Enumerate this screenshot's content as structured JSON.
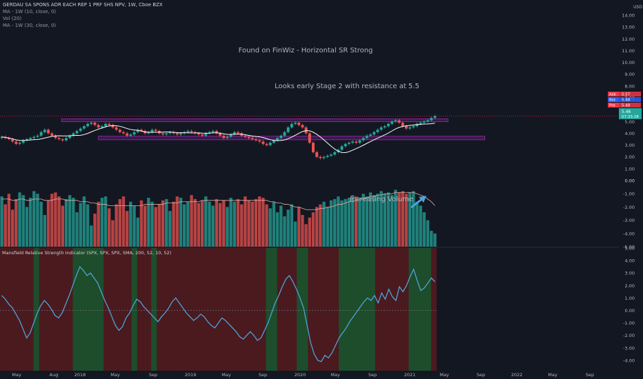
{
  "header": {
    "title": "GERDAU SA SPONS ADR EACH REP 1 PRF SHS NPV, 1W, Cboe BZX",
    "indicators": [
      "MA - 1W (10, close, 0)",
      "Vol (20)",
      "MA - 1W (30, close, 0)"
    ],
    "currency": "USD"
  },
  "annotations": {
    "finwiz": "Found on FinWiz - Horizontal SR Strong",
    "stage": "Looks early Stage 2 with resistance at 5.5",
    "volume": "Increasing Volume"
  },
  "quote_tags": [
    {
      "label": "Ask",
      "value": "5.57",
      "color": "#f23645"
    },
    {
      "label": "Bid",
      "value": "5.48",
      "color": "#2962ff"
    },
    {
      "label": "Pre",
      "value": "5.48",
      "color": "#f23645"
    }
  ],
  "last_price": {
    "value": "5.46",
    "countdown": "07:33:28",
    "color": "#26a69a"
  },
  "colors": {
    "up": "#26a69a",
    "down": "#ef5350",
    "zone": "#9c27b0",
    "rs_line": "#4fa3d9",
    "ma_line": "#ffffff",
    "green_bg": "#1e4d2b",
    "red_bg": "#4a1a1f"
  },
  "chart_data": [
    {
      "type": "candlestick",
      "title": "GERDAU SA SPONS ADR EACH REP 1 PRF SHS NPV, 1W, Cboe BZX",
      "y_ticks": [
        "14.00",
        "13.00",
        "12.00",
        "11.00",
        "10.00",
        "9.00",
        "8.00",
        "7.00",
        "6.00",
        "5.00",
        "4.00",
        "3.00",
        "2.00",
        "1.00",
        "0.00"
      ],
      "ylim": [
        0,
        14
      ],
      "x_ticks": [
        "May",
        "Aug",
        "2018",
        "May",
        "Sep",
        "2019",
        "May",
        "Sep",
        "2020",
        "May",
        "Sep",
        "2021",
        "May",
        "Sep",
        "2022",
        "May",
        "Sep"
      ],
      "support_zones": [
        {
          "x_start": "2017-11",
          "x_end": "2021-05",
          "y_low": 4.98,
          "y_high": 5.22
        },
        {
          "x_start": "2018-03",
          "x_end": "2021-09",
          "y_low": 3.45,
          "y_high": 3.75
        }
      ],
      "weekly_close": [
        3.7,
        3.6,
        3.5,
        3.3,
        3.1,
        3.2,
        3.4,
        3.5,
        3.6,
        3.7,
        3.8,
        4.1,
        4.3,
        4.0,
        3.8,
        3.6,
        3.5,
        3.4,
        3.6,
        3.8,
        4.0,
        4.2,
        4.4,
        4.6,
        4.8,
        4.9,
        4.7,
        4.5,
        4.6,
        4.8,
        4.7,
        4.5,
        4.3,
        4.1,
        4.0,
        3.8,
        3.9,
        4.1,
        4.3,
        4.2,
        4.0,
        4.1,
        4.3,
        4.2,
        4.0,
        3.9,
        4.0,
        4.1,
        4.0,
        3.9,
        4.0,
        4.1,
        4.2,
        4.1,
        4.0,
        3.9,
        3.8,
        4.0,
        4.1,
        4.2,
        4.0,
        3.8,
        3.6,
        3.7,
        3.9,
        4.1,
        4.0,
        3.8,
        3.7,
        3.6,
        3.5,
        3.4,
        3.3,
        3.1,
        3.0,
        3.2,
        3.4,
        3.6,
        3.8,
        4.1,
        4.5,
        4.8,
        4.9,
        4.7,
        4.5,
        4.0,
        3.2,
        2.4,
        2.0,
        1.9,
        2.0,
        2.1,
        2.2,
        2.4,
        2.6,
        2.9,
        3.1,
        3.2,
        3.3,
        3.2,
        3.4,
        3.6,
        3.8,
        3.9,
        4.1,
        4.3,
        4.5,
        4.6,
        4.8,
        5.0,
        5.1,
        4.9,
        4.6,
        4.4,
        4.5,
        4.6,
        4.8,
        4.9,
        5.0,
        5.1,
        5.3,
        5.46
      ]
    },
    {
      "type": "bar",
      "title": "Vol (20)",
      "y_ticks": [
        "0.00",
        "-1.00",
        "-2.00",
        "-3.00",
        "-4.00",
        "-5.00"
      ],
      "ylim": [
        -5,
        0
      ],
      "volume": [
        1.2,
        1.8,
        1.0,
        2.2,
        1.4,
        0.9,
        1.1,
        2.0,
        1.3,
        0.8,
        1.0,
        1.6,
        2.6,
        1.5,
        1.0,
        0.9,
        1.2,
        1.9,
        1.4,
        1.1,
        1.3,
        2.4,
        1.7,
        1.2,
        1.8,
        3.4,
        2.5,
        1.6,
        1.3,
        1.2,
        2.1,
        3.0,
        1.8,
        1.4,
        1.2,
        2.3,
        1.6,
        1.9,
        2.8,
        1.5,
        1.9,
        1.3,
        1.6,
        2.0,
        1.8,
        1.5,
        1.4,
        2.3,
        1.6,
        1.2,
        1.3,
        1.8,
        1.6,
        1.1,
        1.4,
        1.7,
        1.5,
        1.2,
        1.6,
        1.9,
        1.4,
        1.7,
        1.5,
        2.0,
        1.3,
        1.6,
        1.4,
        1.8,
        1.2,
        1.5,
        1.6,
        1.4,
        1.2,
        1.3,
        1.8,
        2.1,
        1.6,
        2.4,
        1.9,
        2.7,
        2.2,
        1.8,
        3.1,
        2.0,
        2.6,
        3.3,
        2.8,
        2.4,
        2.0,
        1.8,
        1.6,
        2.0,
        1.5,
        1.4,
        1.2,
        1.5,
        1.4,
        1.3,
        1.1,
        1.2,
        1.3,
        1.0,
        1.2,
        0.9,
        1.1,
        1.0,
        0.8,
        1.0,
        0.9,
        1.1,
        0.7,
        0.9,
        0.8,
        1.0,
        0.9,
        0.8,
        1.6,
        1.9,
        2.4,
        3.0,
        3.8,
        4.0
      ],
      "volume_ma": [
        1.4,
        1.4,
        1.4,
        1.5,
        1.5,
        1.4,
        1.4,
        1.5,
        1.5,
        1.4,
        1.4,
        1.4,
        1.5,
        1.5,
        1.5,
        1.4,
        1.4,
        1.4,
        1.5,
        1.5,
        1.5,
        1.5,
        1.6,
        1.6,
        1.6,
        1.7,
        1.7,
        1.8,
        1.8,
        1.8,
        1.9,
        1.9,
        1.9,
        1.9,
        1.9,
        1.9,
        1.9,
        1.9,
        1.9,
        1.9,
        1.8,
        1.8,
        1.8,
        1.8,
        1.8,
        1.8,
        1.7,
        1.7,
        1.7,
        1.7,
        1.6,
        1.6,
        1.6,
        1.6,
        1.6,
        1.6,
        1.5,
        1.5,
        1.5,
        1.5,
        1.5,
        1.5,
        1.5,
        1.5,
        1.5,
        1.5,
        1.5,
        1.5,
        1.5,
        1.5,
        1.5,
        1.5,
        1.5,
        1.5,
        1.5,
        1.6,
        1.6,
        1.7,
        1.7,
        1.8,
        1.8,
        1.9,
        2.0,
        2.0,
        2.1,
        2.2,
        2.2,
        2.2,
        2.2,
        2.1,
        2.1,
        2.0,
        2.0,
        1.9,
        1.8,
        1.8,
        1.7,
        1.6,
        1.6,
        1.5,
        1.4,
        1.4,
        1.3,
        1.2,
        1.2,
        1.1,
        1.1,
        1.0,
        1.0,
        1.0,
        0.9,
        0.9,
        0.9,
        0.9,
        0.9,
        0.9,
        1.0,
        1.1,
        1.2,
        1.4,
        1.6,
        1.9
      ]
    },
    {
      "type": "line",
      "title": "Mansfield Relative Strength Indicator (SPX, SPX, SPX, SMA, 200, 52, 10, 52)",
      "y_ticks": [
        "5.00",
        "4.00",
        "3.00",
        "2.00",
        "1.00",
        "0.00",
        "-1.00",
        "-2.00",
        "-3.00",
        "-4.00"
      ],
      "ylim": [
        -4.5,
        5
      ],
      "values": [
        1.2,
        0.9,
        0.5,
        0.2,
        -0.3,
        -0.8,
        -1.5,
        -2.2,
        -1.8,
        -1.0,
        -0.2,
        0.4,
        0.8,
        0.5,
        0.1,
        -0.4,
        -0.6,
        -0.2,
        0.5,
        1.2,
        2.0,
        2.8,
        3.5,
        3.2,
        2.8,
        3.0,
        2.6,
        2.2,
        1.5,
        0.8,
        0.2,
        -0.5,
        -1.2,
        -1.6,
        -1.3,
        -0.6,
        -0.2,
        0.4,
        0.9,
        0.7,
        0.3,
        0.0,
        -0.3,
        -0.6,
        -0.9,
        -0.5,
        -0.2,
        0.2,
        0.7,
        1.0,
        0.6,
        0.2,
        -0.2,
        -0.5,
        -0.8,
        -0.6,
        -0.3,
        -0.5,
        -0.9,
        -1.2,
        -1.4,
        -1.0,
        -0.6,
        -0.8,
        -1.1,
        -1.4,
        -1.7,
        -2.1,
        -2.3,
        -2.0,
        -1.7,
        -2.0,
        -2.4,
        -2.2,
        -1.6,
        -1.0,
        -0.2,
        0.6,
        1.2,
        1.9,
        2.5,
        2.8,
        2.3,
        1.7,
        1.0,
        0.2,
        -1.2,
        -2.6,
        -3.5,
        -4.0,
        -4.1,
        -3.6,
        -3.8,
        -3.4,
        -2.8,
        -2.2,
        -1.8,
        -1.4,
        -0.9,
        -0.5,
        -0.1,
        0.3,
        0.7,
        1.0,
        0.8,
        1.2,
        0.6,
        1.4,
        0.9,
        1.7,
        1.1,
        0.8,
        1.9,
        1.5,
        2.0,
        2.7,
        3.3,
        2.4,
        1.6,
        1.8,
        2.2,
        2.6,
        2.3
      ],
      "green_regions": [
        [
          12,
          14
        ],
        [
          26,
          37
        ],
        [
          47,
          49
        ],
        [
          54,
          56
        ],
        [
          95,
          99
        ],
        [
          106,
          110
        ],
        [
          121,
          134
        ],
        [
          146,
          154
        ]
      ]
    }
  ]
}
